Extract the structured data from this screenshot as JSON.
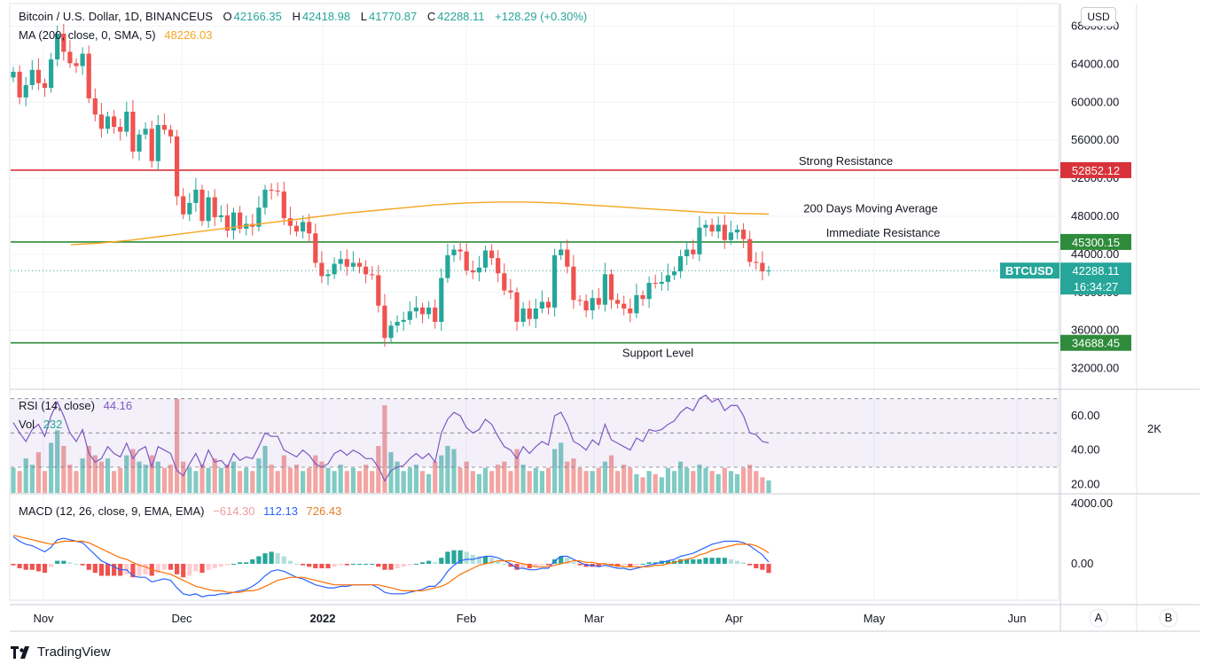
{
  "header": {
    "symbol": "Bitcoin / U.S. Dollar, 1D, BINANCEUS",
    "o_label": "O",
    "o": "42166.35",
    "h_label": "H",
    "h": "42418.98",
    "l_label": "L",
    "l": "41770.87",
    "c_label": "C",
    "c": "42288.11",
    "change": "+128.29 (+0.30%)",
    "ma_label": "MA (200, close, 0, SMA, 5)",
    "ma_value": "48226.03"
  },
  "rsi": {
    "label": "RSI (14, close)",
    "value": "44.16"
  },
  "vol": {
    "label": "Vol",
    "value": "232"
  },
  "macd": {
    "label": "MACD (12, 26, close, 9, EMA, EMA)",
    "hist": "−614.30",
    "macd": "112.13",
    "signal": "726.43"
  },
  "currency_badge": "USD",
  "side_panel_value": "2K",
  "scale_buttons": {
    "a": "A",
    "b": "B"
  },
  "brand": "TradingView",
  "colors": {
    "up": "#26a69a",
    "down": "#ef5350",
    "ma": "#f5a623",
    "resistance": "#d8323a",
    "support": "#2e8b3a",
    "rsi": "#7e57c2",
    "macd": "#2962ff",
    "signal": "#ff6d00"
  },
  "chart_data": [
    {
      "type": "candlestick",
      "title": "Bitcoin / U.S. Dollar, 1D, BINANCEUS",
      "x_ticks": [
        "Nov",
        "Dec",
        "2022",
        "Feb",
        "Mar",
        "Apr",
        "May",
        "Jun"
      ],
      "y_ticks": [
        32000,
        36000,
        40000,
        44000,
        48000,
        52000,
        56000,
        60000,
        64000,
        68000
      ],
      "y_tick_labels": [
        "32000.00",
        "36000.00",
        "40000.00",
        "44000.00",
        "48000.00",
        "52000.00",
        "56000.00",
        "60000.00",
        "64000.00",
        "68000.00"
      ],
      "ylim": [
        30000,
        70000
      ],
      "close_series": [
        63200,
        60500,
        61800,
        63400,
        62000,
        61500,
        64500,
        67200,
        65300,
        64100,
        63800,
        65100,
        60400,
        58700,
        57200,
        58500,
        57400,
        56900,
        59000,
        54800,
        56600,
        57200,
        53800,
        57600,
        57100,
        56400,
        50100,
        48200,
        49400,
        50800,
        47500,
        50000,
        47900,
        48100,
        46500,
        48400,
        46700,
        47200,
        46900,
        48900,
        50800,
        50700,
        50600,
        47800,
        47000,
        46400,
        47400,
        46200,
        43100,
        41700,
        41900,
        43000,
        43500,
        42700,
        43100,
        42700,
        41900,
        41800,
        38600,
        35200,
        36500,
        36900,
        37100,
        38000,
        38400,
        37700,
        38400,
        36900,
        41500,
        43900,
        44500,
        44300,
        42300,
        42100,
        42600,
        44400,
        43600,
        42000,
        40200,
        40000,
        36900,
        38300,
        37200,
        38300,
        39000,
        38400,
        43900,
        44500,
        42700,
        39200,
        39100,
        38100,
        39400,
        38700,
        41900,
        39200,
        38800,
        38300,
        37800,
        39700,
        39300,
        41000,
        40900,
        41100,
        41800,
        42200,
        43800,
        44500,
        44000,
        46800,
        47100,
        46400,
        47100,
        45500,
        46300,
        46600,
        45600,
        43200,
        43100,
        42200,
        42300
      ],
      "ma200_series": [
        45000,
        45200,
        45500,
        45900,
        46300,
        46700,
        47100,
        47500,
        47900,
        48300,
        48600,
        48900,
        49200,
        49400,
        49500,
        49500,
        49400,
        49200,
        49000,
        48800,
        48600,
        48400,
        48300,
        48226
      ],
      "ma200_value": 48226.03,
      "current_price": 42288.11,
      "countdown": "16:34:27",
      "symbol_tag": "BTCUSD",
      "levels": [
        {
          "name": "Strong Resistance",
          "value": 52852.12,
          "label": "52852.12"
        },
        {
          "name": "200 Days Moving Average",
          "value": 48226.03
        },
        {
          "name": "Immediate Resistance",
          "value": 45300.15,
          "label": "45300.15"
        },
        {
          "name": "Support Level",
          "value": 34688.45,
          "label": "34688.45"
        }
      ],
      "current_label": "42288.11"
    },
    {
      "type": "line",
      "title": "RSI (14, close)",
      "ylim": [
        15,
        75
      ],
      "y_ticks": [
        20,
        40,
        60
      ],
      "y_tick_labels": [
        "20.00",
        "40.00",
        "60.00"
      ],
      "bands": [
        30,
        50,
        70
      ],
      "rsi_series": [
        56,
        50,
        45,
        52,
        55,
        48,
        60,
        68,
        60,
        50,
        45,
        52,
        38,
        33,
        35,
        42,
        38,
        36,
        44,
        35,
        40,
        42,
        30,
        42,
        40,
        38,
        28,
        25,
        32,
        38,
        30,
        40,
        33,
        34,
        30,
        38,
        34,
        36,
        35,
        42,
        50,
        48,
        48,
        40,
        38,
        36,
        40,
        37,
        32,
        30,
        32,
        38,
        40,
        37,
        40,
        38,
        35,
        35,
        30,
        22,
        28,
        30,
        31,
        35,
        38,
        35,
        38,
        33,
        50,
        58,
        62,
        60,
        53,
        50,
        52,
        58,
        55,
        48,
        42,
        40,
        35,
        42,
        38,
        42,
        45,
        43,
        60,
        62,
        55,
        45,
        43,
        40,
        46,
        43,
        55,
        46,
        44,
        42,
        40,
        47,
        45,
        52,
        51,
        52,
        55,
        57,
        62,
        65,
        63,
        70,
        72,
        68,
        70,
        63,
        66,
        66,
        60,
        50,
        49,
        45,
        44.16
      ],
      "volume_series": [
        16,
        14,
        22,
        18,
        26,
        14,
        32,
        40,
        30,
        18,
        14,
        22,
        30,
        24,
        20,
        22,
        14,
        16,
        24,
        28,
        20,
        18,
        24,
        20,
        16,
        18,
        60,
        20,
        16,
        14,
        18,
        16,
        22,
        16,
        18,
        20,
        14,
        16,
        14,
        22,
        30,
        18,
        14,
        24,
        16,
        18,
        14,
        16,
        24,
        20,
        16,
        14,
        18,
        14,
        16,
        14,
        18,
        14,
        30,
        56,
        26,
        20,
        14,
        16,
        18,
        14,
        12,
        20,
        24,
        30,
        28,
        16,
        20,
        14,
        12,
        16,
        14,
        18,
        20,
        14,
        28,
        18,
        14,
        16,
        14,
        16,
        28,
        32,
        20,
        22,
        16,
        14,
        14,
        16,
        20,
        24,
        14,
        18,
        16,
        12,
        10,
        14,
        12,
        10,
        16,
        14,
        20,
        16,
        14,
        18,
        16,
        14,
        12,
        16,
        14,
        12,
        16,
        18,
        14,
        10,
        8
      ]
    },
    {
      "type": "bar",
      "title": "MACD (12, 26, close, 9, EMA, EMA)",
      "ylim": [
        -2600,
        4600
      ],
      "y_ticks": [
        0,
        4000
      ],
      "y_tick_labels": [
        "0.00",
        "4000.00"
      ],
      "macd_series": [
        1800,
        1500,
        1300,
        1200,
        1000,
        800,
        1100,
        1600,
        1700,
        1600,
        1500,
        1400,
        1000,
        600,
        200,
        0,
        -200,
        -400,
        -400,
        -800,
        -900,
        -900,
        -1200,
        -1100,
        -1000,
        -1100,
        -1600,
        -2000,
        -2100,
        -2000,
        -2200,
        -2100,
        -2100,
        -2000,
        -2000,
        -1900,
        -1800,
        -1700,
        -1500,
        -1200,
        -800,
        -500,
        -400,
        -500,
        -700,
        -900,
        -1000,
        -1200,
        -1400,
        -1500,
        -1600,
        -1600,
        -1500,
        -1500,
        -1400,
        -1400,
        -1400,
        -1400,
        -1600,
        -1900,
        -2000,
        -2000,
        -2000,
        -1900,
        -1800,
        -1700,
        -1500,
        -1500,
        -1100,
        -500,
        -100,
        200,
        300,
        300,
        400,
        500,
        500,
        400,
        200,
        0,
        -300,
        -300,
        -400,
        -400,
        -300,
        -300,
        200,
        500,
        500,
        300,
        100,
        -100,
        -100,
        -200,
        -100,
        -200,
        -300,
        -300,
        -400,
        -300,
        -200,
        -100,
        0,
        100,
        200,
        300,
        500,
        600,
        700,
        900,
        1100,
        1300,
        1400,
        1500,
        1500,
        1500,
        1400,
        1200,
        900,
        600,
        112
      ],
      "signal_series": [
        1900,
        1800,
        1700,
        1600,
        1500,
        1400,
        1300,
        1400,
        1500,
        1500,
        1500,
        1500,
        1400,
        1200,
        1000,
        800,
        600,
        400,
        300,
        100,
        -100,
        -200,
        -400,
        -500,
        -600,
        -700,
        -900,
        -1100,
        -1300,
        -1500,
        -1600,
        -1700,
        -1800,
        -1800,
        -1900,
        -1900,
        -1900,
        -1800,
        -1800,
        -1700,
        -1500,
        -1300,
        -1100,
        -1000,
        -900,
        -900,
        -900,
        -1000,
        -1100,
        -1200,
        -1300,
        -1400,
        -1400,
        -1400,
        -1400,
        -1400,
        -1400,
        -1400,
        -1400,
        -1500,
        -1600,
        -1700,
        -1800,
        -1800,
        -1800,
        -1800,
        -1700,
        -1600,
        -1500,
        -1300,
        -1000,
        -700,
        -500,
        -300,
        -100,
        0,
        100,
        200,
        200,
        200,
        100,
        0,
        -100,
        -200,
        -200,
        -200,
        -100,
        0,
        100,
        200,
        200,
        100,
        100,
        0,
        0,
        -100,
        -100,
        -200,
        -200,
        -200,
        -200,
        -200,
        -100,
        -100,
        0,
        100,
        200,
        300,
        400,
        600,
        700,
        900,
        1000,
        1100,
        1200,
        1300,
        1300,
        1300,
        1200,
        1000,
        726
      ]
    }
  ]
}
